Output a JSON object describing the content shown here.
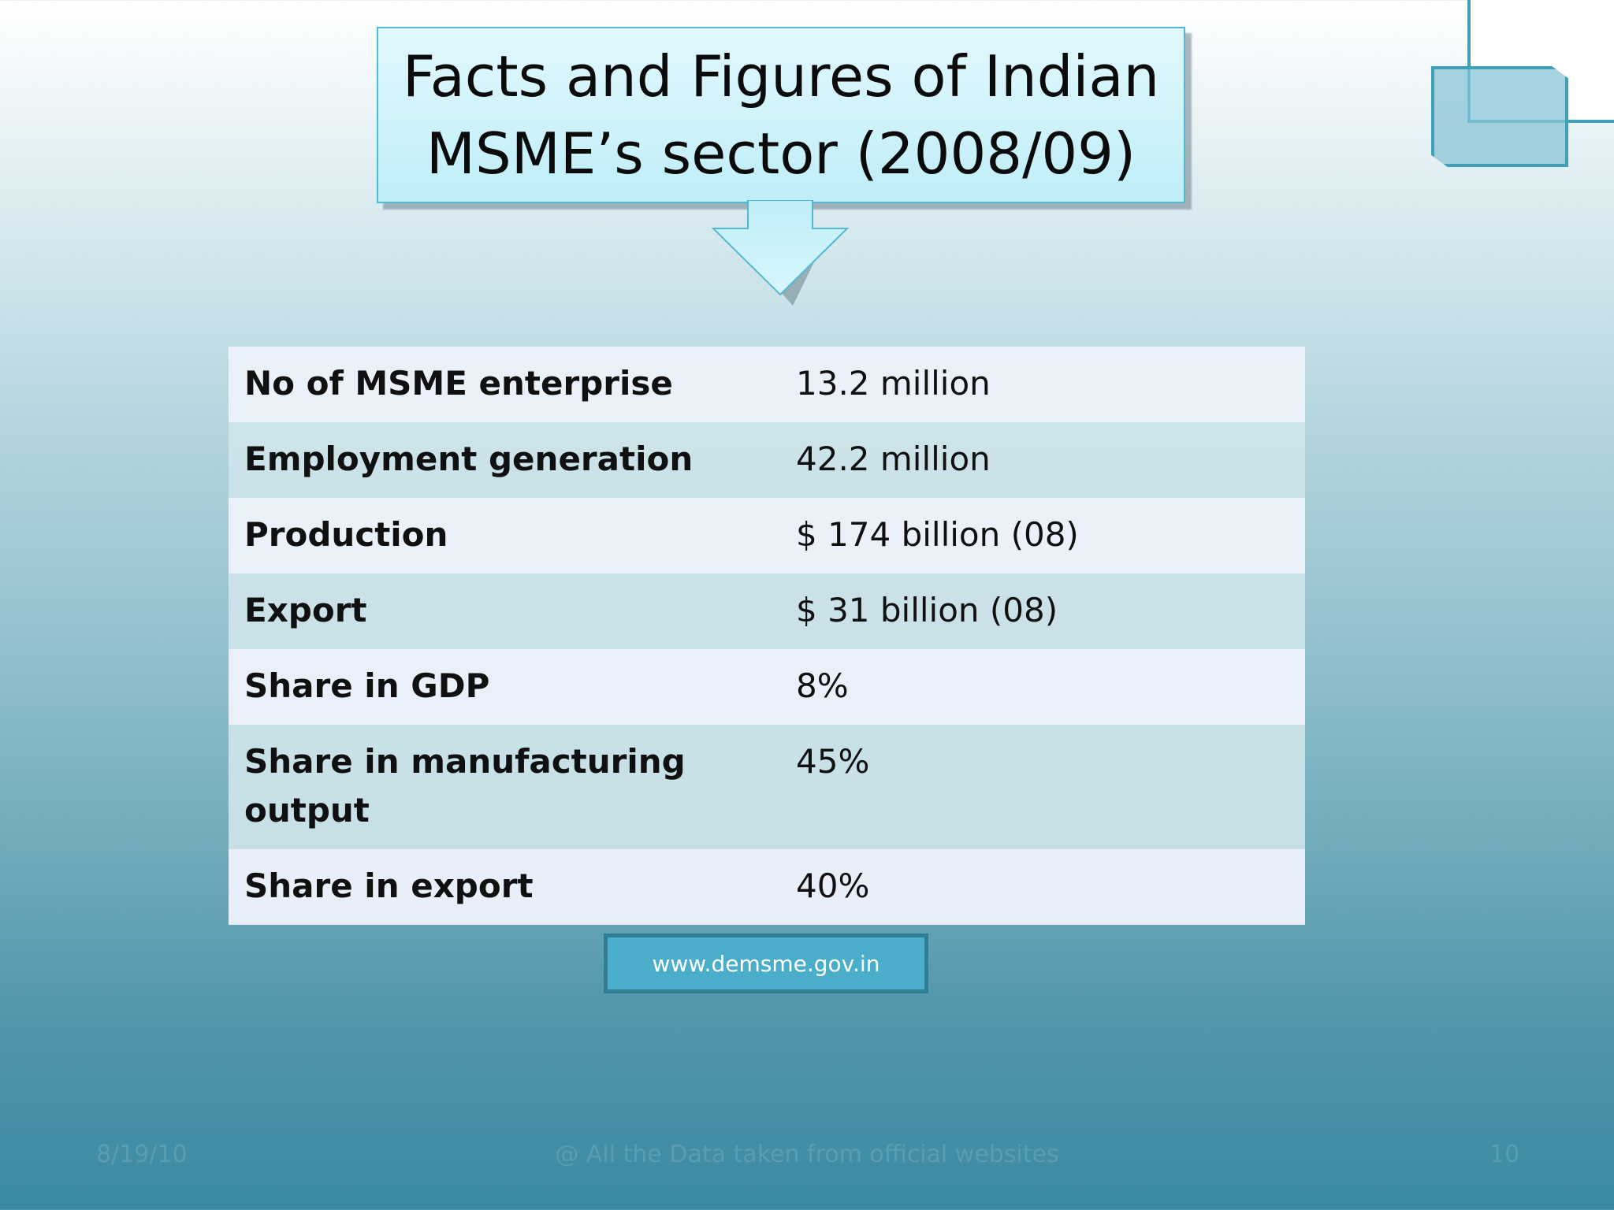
{
  "title": "Facts and Figures of Indian\nMSME’s sector (2008/09)",
  "facts": [
    {
      "label": "No of MSME enterprise",
      "value": "13.2 million"
    },
    {
      "label": "Employment generation",
      "value": "42.2 million"
    },
    {
      "label": "Production",
      "value": "$ 174 billion (08)"
    },
    {
      "label": "Export",
      "value": "$ 31 billion (08)"
    },
    {
      "label": "Share in GDP",
      "value": "8%"
    },
    {
      "label": "Share in manufacturing output",
      "value": "45%"
    },
    {
      "label": "Share in export",
      "value": "40%"
    }
  ],
  "link": "www.demsme.gov.in",
  "footer": {
    "date": "8/19/10",
    "note": "@ All the Data taken from official websites",
    "page": "10"
  }
}
